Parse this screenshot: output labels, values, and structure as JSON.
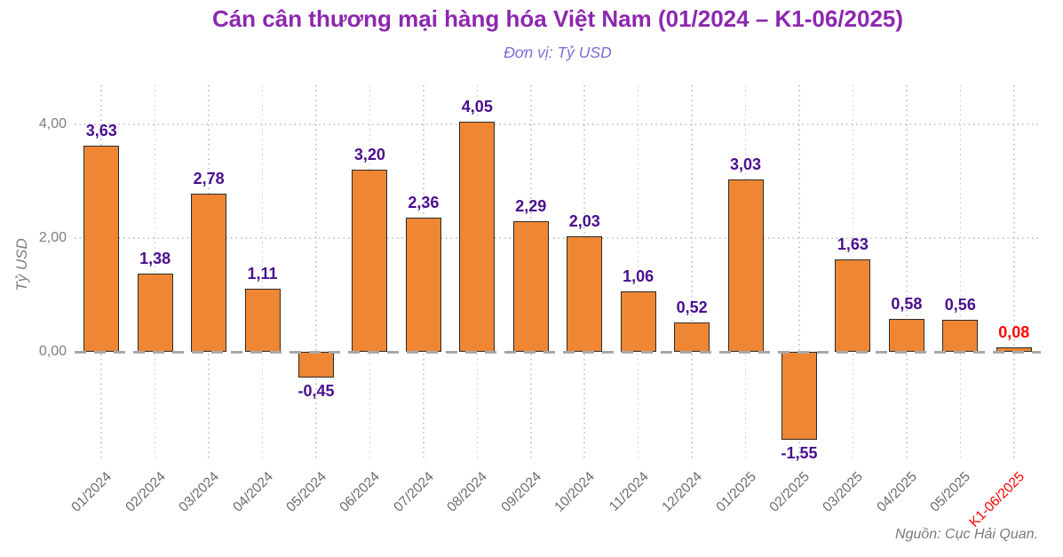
{
  "title": "Cán cân thương mại hàng hóa Việt Nam (01/2024 – K1-06/2025)",
  "subtitle": "Đơn vị: Tỷ USD",
  "source": "Nguồn: Cục Hải Quan.",
  "colors": {
    "background": "#ffffff",
    "title": "#8c28af",
    "subtitle": "#7b6fdb",
    "bar_fill": "#ee8633",
    "bar_border": "#2b2b2b",
    "value_label": "#4a0e8f",
    "highlight": "#ff0000",
    "axis_text": "#7f7f7f",
    "x_tick_text": "#6b6b6b",
    "source_text": "#7a7a7a",
    "grid": "#c9c9c9",
    "zero_line": "#a8a8a8"
  },
  "chart_data": {
    "type": "bar",
    "title": "Cán cân thương mại hàng hóa Việt Nam (01/2024 – K1-06/2025)",
    "subtitle": "Đơn vị: Tỷ USD",
    "ylabel": "Tỷ USD",
    "unit": "Tỷ USD",
    "categories": [
      "01/2024",
      "02/2024",
      "03/2024",
      "04/2024",
      "05/2024",
      "06/2024",
      "07/2024",
      "08/2024",
      "09/2024",
      "10/2024",
      "11/2024",
      "12/2024",
      "01/2025",
      "02/2025",
      "03/2025",
      "04/2025",
      "05/2025",
      "K1-06/2025"
    ],
    "values": [
      3.63,
      1.38,
      2.78,
      1.11,
      -0.45,
      3.2,
      2.36,
      4.05,
      2.29,
      2.03,
      1.06,
      0.52,
      3.03,
      -1.55,
      1.63,
      0.58,
      0.56,
      0.08
    ],
    "value_labels": [
      "3,63",
      "1,38",
      "2,78",
      "1,11",
      "-0,45",
      "3,20",
      "2,36",
      "4,05",
      "2,29",
      "2,03",
      "1,06",
      "0,52",
      "3,03",
      "-1,55",
      "1,63",
      "0,58",
      "0,56",
      "0,08"
    ],
    "highlight_index": 17,
    "yticks": [
      {
        "value": 0,
        "label": "0,00"
      },
      {
        "value": 2,
        "label": "2,00"
      },
      {
        "value": 4,
        "label": "4,00"
      }
    ],
    "ylim": [
      -1.9,
      4.8
    ],
    "grid": true,
    "legend_position": "none",
    "x_tick_rotation": 45,
    "source": "Nguồn: Cục Hải Quan."
  }
}
